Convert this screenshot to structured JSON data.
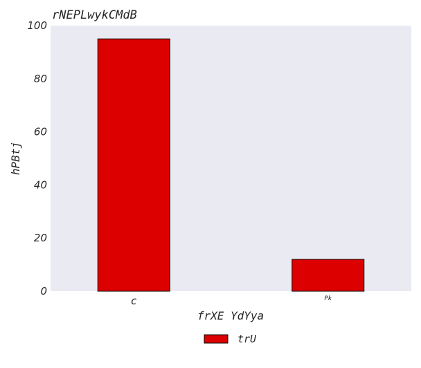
{
  "chart_data": {
    "type": "bar",
    "title": "rNEPLwykCMdB",
    "xlabel": "frXE YdYya",
    "ylabel": "hPBtj",
    "categories": [
      "c",
      "Pk"
    ],
    "series": [
      {
        "name": "trU",
        "values": [
          95,
          12
        ],
        "color": "#dd0000"
      }
    ],
    "ylim": [
      0,
      100
    ],
    "yticks": [
      0,
      20,
      40,
      60,
      80,
      100
    ],
    "grid": false,
    "legend_position": "bottom-center",
    "background_color": "#eaeaf2"
  }
}
